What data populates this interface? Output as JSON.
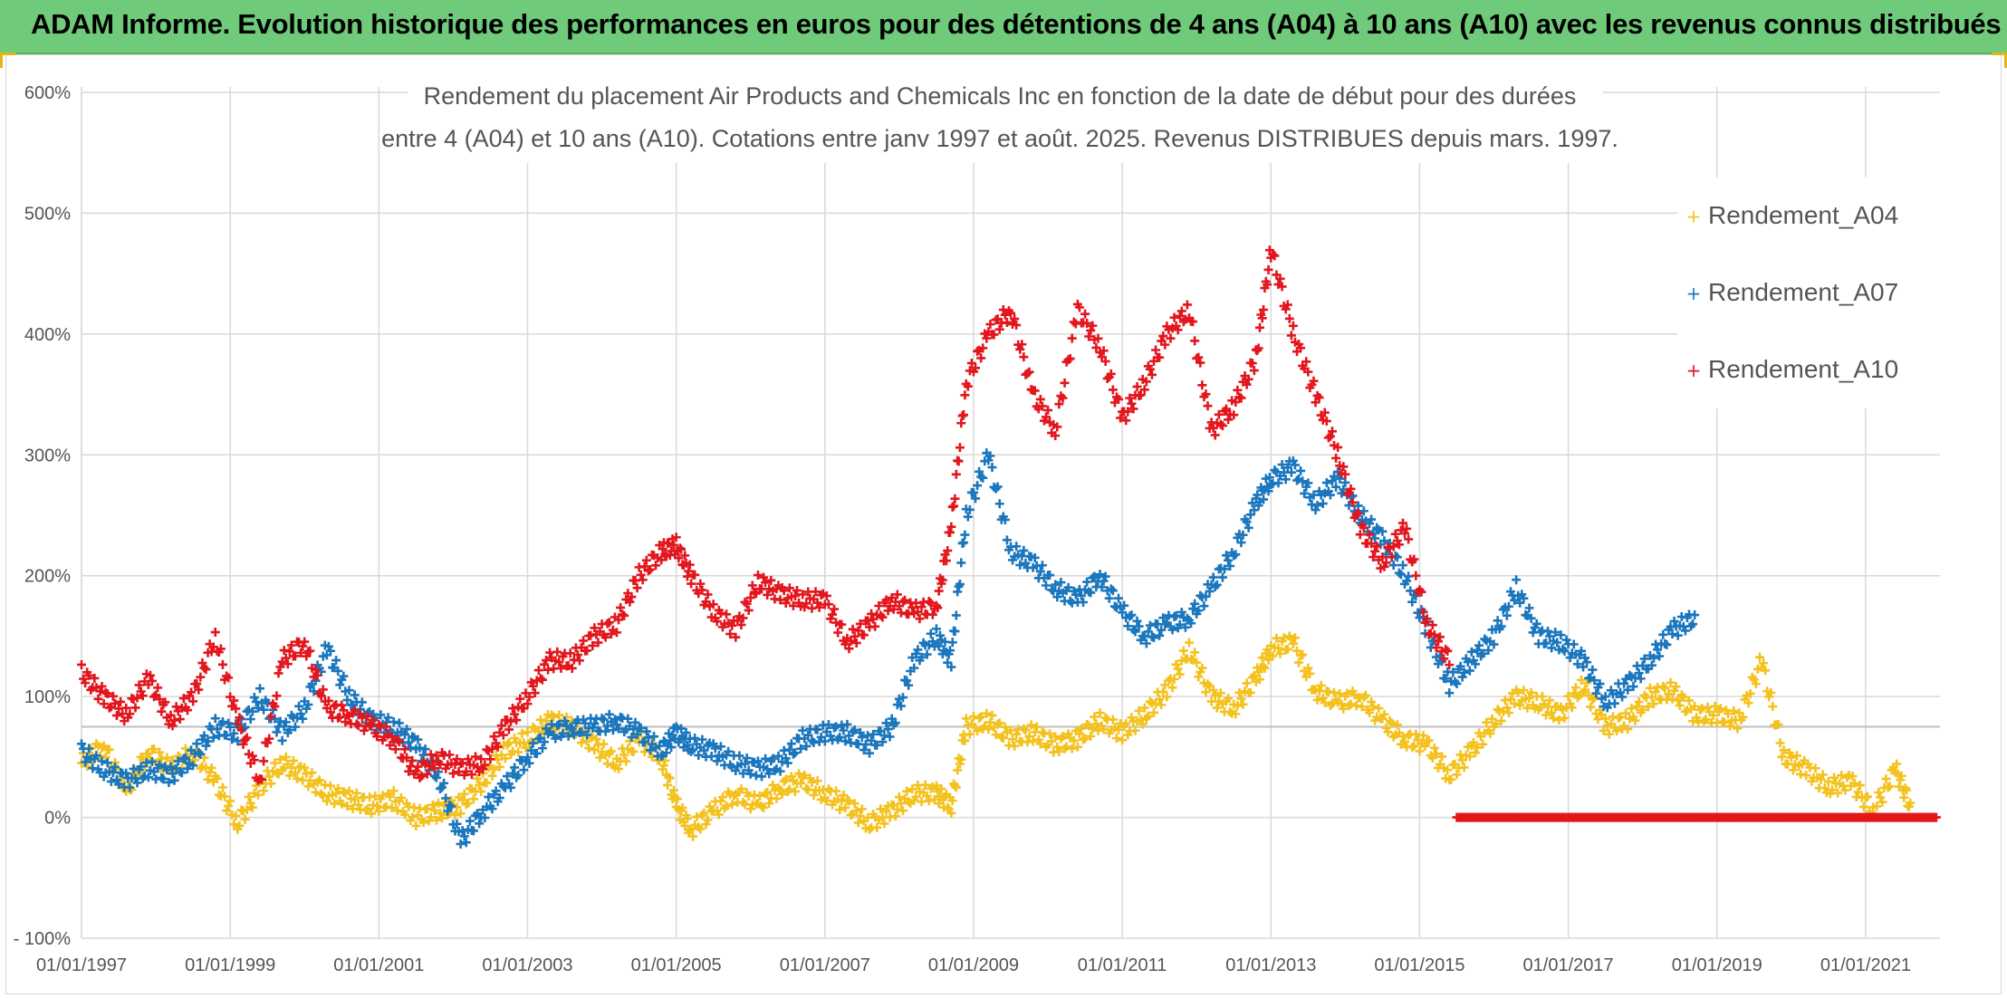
{
  "header": {
    "title": "ADAM Informe. Evolution historique des performances en euros pour des détentions de 4 ans (A04) à 10 ans (A10) avec les revenus connus distribués"
  },
  "chart_data": {
    "type": "scatter",
    "title_lines": [
      "Rendement du placement Air Products and Chemicals Inc en fonction de la date de début pour des durées",
      "entre 4 (A04) et 10 ans (A10). Cotations entre janv 1997 et août. 2025. Revenus DISTRIBUES depuis mars. 1997."
    ],
    "xlabel": "",
    "ylabel": "",
    "x_tick_labels": [
      "01/01/1997",
      "01/01/1999",
      "01/01/2001",
      "01/01/2003",
      "01/01/2005",
      "01/01/2007",
      "01/01/2009",
      "01/01/2011",
      "01/01/2013",
      "01/01/2015",
      "01/01/2017",
      "01/01/2019",
      "01/01/2021"
    ],
    "x_tick_years": [
      1997,
      1999,
      2001,
      2003,
      2005,
      2007,
      2009,
      2011,
      2013,
      2015,
      2017,
      2019,
      2021
    ],
    "xlim_years": [
      1997.0,
      2022.0
    ],
    "y_tick_labels": [
      "- 100%",
      "0%",
      "100%",
      "200%",
      "300%",
      "400%",
      "500%",
      "600%"
    ],
    "y_tick_values": [
      -100,
      0,
      100,
      200,
      300,
      400,
      500,
      600
    ],
    "ylim": [
      -100,
      600
    ],
    "reference_line_y": 75,
    "grid": true,
    "legend_position": "top-right",
    "series": [
      {
        "name": "Rendement_A04",
        "color": "#f4c21f",
        "x": [
          1997.0,
          1997.3,
          1997.6,
          1997.9,
          1998.2,
          1998.5,
          1998.8,
          1999.1,
          1999.4,
          1999.7,
          2000.0,
          2000.3,
          2000.6,
          2000.9,
          2001.2,
          2001.5,
          2001.8,
          2002.1,
          2002.4,
          2002.7,
          2003.0,
          2003.3,
          2003.6,
          2003.9,
          2004.2,
          2004.5,
          2004.8,
          2005.0,
          2005.2,
          2005.5,
          2005.8,
          2006.1,
          2006.4,
          2006.7,
          2007.0,
          2007.3,
          2007.6,
          2007.9,
          2008.2,
          2008.5,
          2008.7,
          2008.9,
          2009.2,
          2009.5,
          2009.8,
          2010.1,
          2010.4,
          2010.7,
          2011.0,
          2011.3,
          2011.6,
          2011.9,
          2012.2,
          2012.5,
          2012.8,
          2013.0,
          2013.3,
          2013.6,
          2013.9,
          2014.2,
          2014.5,
          2014.8,
          2015.1,
          2015.4,
          2015.7,
          2016.0,
          2016.3,
          2016.6,
          2016.9,
          2017.2,
          2017.5,
          2017.8,
          2018.1,
          2018.4,
          2018.7,
          2019.0,
          2019.3,
          2019.6,
          2019.9,
          2020.2,
          2020.5,
          2020.8,
          2021.1,
          2021.4,
          2021.6
        ],
        "values": [
          45,
          60,
          20,
          55,
          40,
          55,
          30,
          -5,
          25,
          45,
          35,
          20,
          15,
          10,
          15,
          0,
          5,
          10,
          30,
          55,
          65,
          80,
          75,
          60,
          45,
          65,
          50,
          10,
          -10,
          5,
          20,
          10,
          25,
          30,
          20,
          10,
          -5,
          5,
          20,
          20,
          10,
          75,
          80,
          65,
          70,
          60,
          65,
          80,
          70,
          85,
          105,
          140,
          100,
          90,
          115,
          140,
          145,
          105,
          95,
          100,
          80,
          65,
          60,
          35,
          55,
          80,
          100,
          95,
          85,
          110,
          75,
          80,
          100,
          105,
          85,
          85,
          80,
          130,
          50,
          40,
          25,
          30,
          5,
          40,
          10
        ]
      },
      {
        "name": "Rendement_A07",
        "color": "#1a76bd",
        "x": [
          1997.0,
          1997.3,
          1997.6,
          1997.9,
          1998.2,
          1998.5,
          1998.8,
          1999.1,
          1999.4,
          1999.7,
          2000.0,
          2000.3,
          2000.6,
          2000.9,
          2001.2,
          2001.5,
          2001.8,
          2002.1,
          2002.4,
          2002.7,
          2003.0,
          2003.3,
          2003.6,
          2003.9,
          2004.2,
          2004.5,
          2004.8,
          2005.0,
          2005.2,
          2005.5,
          2005.8,
          2006.1,
          2006.4,
          2006.7,
          2007.0,
          2007.3,
          2007.6,
          2007.9,
          2008.2,
          2008.5,
          2008.7,
          2008.9,
          2009.2,
          2009.5,
          2009.8,
          2010.1,
          2010.4,
          2010.7,
          2011.0,
          2011.3,
          2011.6,
          2011.9,
          2012.2,
          2012.5,
          2012.8,
          2013.0,
          2013.3,
          2013.6,
          2013.9,
          2014.2,
          2014.5,
          2014.8,
          2015.1,
          2015.4,
          2015.7,
          2016.0,
          2016.3,
          2016.6,
          2016.9,
          2017.2,
          2017.5,
          2017.8,
          2018.1,
          2018.4,
          2018.7
        ],
        "values": [
          55,
          40,
          30,
          40,
          35,
          50,
          75,
          70,
          100,
          70,
          90,
          140,
          100,
          80,
          75,
          60,
          35,
          -20,
          5,
          25,
          50,
          70,
          75,
          75,
          80,
          70,
          55,
          70,
          60,
          55,
          45,
          40,
          45,
          65,
          70,
          70,
          60,
          75,
          130,
          150,
          130,
          250,
          300,
          220,
          210,
          190,
          180,
          200,
          170,
          150,
          160,
          165,
          190,
          220,
          260,
          280,
          290,
          260,
          280,
          250,
          230,
          200,
          155,
          110,
          130,
          150,
          190,
          150,
          145,
          130,
          95,
          110,
          130,
          155,
          165
        ]
      },
      {
        "name": "Rendement_A10",
        "color": "#e3161d",
        "x": [
          1997.0,
          1997.3,
          1997.6,
          1997.9,
          1998.2,
          1998.5,
          1998.8,
          1999.1,
          1999.4,
          1999.7,
          2000.0,
          2000.3,
          2000.6,
          2000.9,
          2001.2,
          2001.5,
          2001.8,
          2002.1,
          2002.4,
          2002.7,
          2003.0,
          2003.3,
          2003.6,
          2003.9,
          2004.2,
          2004.5,
          2004.8,
          2005.0,
          2005.2,
          2005.5,
          2005.8,
          2006.1,
          2006.4,
          2006.7,
          2007.0,
          2007.3,
          2007.6,
          2007.9,
          2008.2,
          2008.5,
          2008.7,
          2008.9,
          2009.2,
          2009.5,
          2009.8,
          2010.1,
          2010.4,
          2010.7,
          2011.0,
          2011.3,
          2011.6,
          2011.9,
          2012.2,
          2012.5,
          2012.8,
          2013.0,
          2013.3,
          2013.6,
          2013.9,
          2014.2,
          2014.5,
          2014.8,
          2015.1,
          2015.4
        ],
        "values": [
          120,
          100,
          85,
          115,
          80,
          100,
          150,
          80,
          30,
          130,
          145,
          90,
          85,
          75,
          65,
          35,
          50,
          40,
          45,
          75,
          100,
          130,
          130,
          150,
          160,
          200,
          220,
          225,
          200,
          170,
          155,
          195,
          185,
          180,
          180,
          145,
          160,
          180,
          170,
          175,
          240,
          360,
          400,
          420,
          350,
          320,
          420,
          390,
          330,
          360,
          400,
          420,
          320,
          340,
          380,
          470,
          400,
          350,
          300,
          240,
          210,
          240,
          160,
          130
        ]
      },
      {
        "name": "",
        "color": "#e3161d",
        "x": [
          2015.5,
          2015.75,
          2016.0,
          2016.25,
          2016.5,
          2016.75,
          2017.0,
          2017.25,
          2017.5,
          2017.75,
          2018.0,
          2018.25,
          2018.5,
          2018.75,
          2019.0,
          2019.25,
          2019.5,
          2019.75,
          2020.0,
          2020.25,
          2020.5,
          2020.75,
          2021.0,
          2021.25,
          2021.5,
          2021.75,
          2021.95
        ],
        "values": [
          0,
          0,
          0,
          0,
          0,
          0,
          0,
          0,
          0,
          0,
          0,
          0,
          0,
          0,
          0,
          0,
          0,
          0,
          0,
          0,
          0,
          0,
          0,
          0,
          0,
          0,
          0
        ]
      }
    ]
  }
}
